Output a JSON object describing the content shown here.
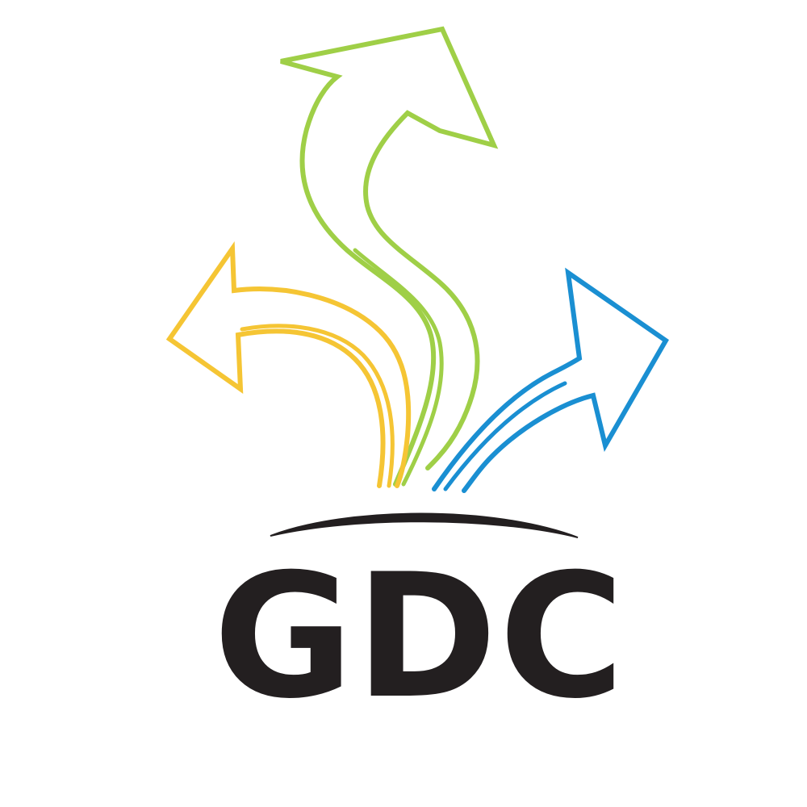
{
  "logo": {
    "wordmark": "GDC",
    "colors": {
      "green_arrow": "#9fcf47",
      "yellow_arrow": "#f5c534",
      "blue_arrow": "#1a8fd2",
      "wordmark": "#231f20",
      "arc": "#231f20",
      "background": "#ffffff"
    },
    "icons": [
      "green-up-arrow-icon",
      "yellow-left-arrow-icon",
      "blue-right-arrow-icon",
      "horizon-arc"
    ]
  }
}
